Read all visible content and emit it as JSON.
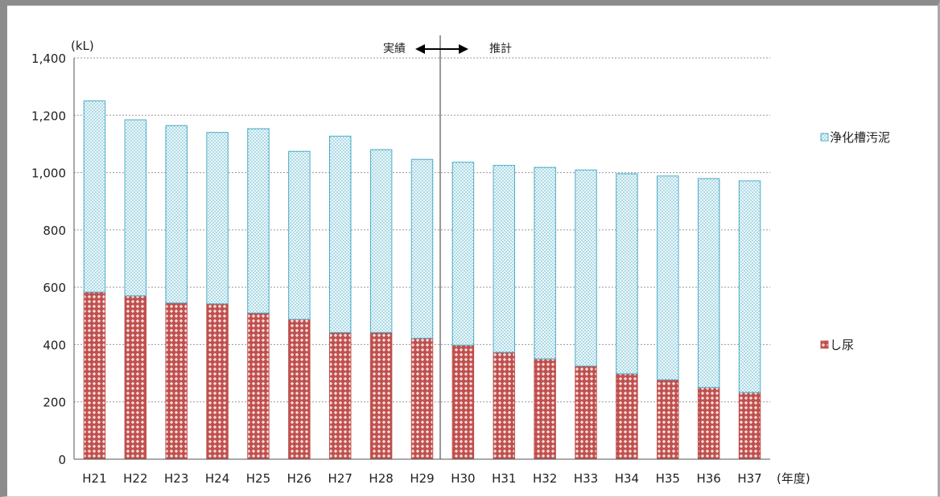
{
  "chart_data": {
    "type": "bar",
    "stacked": true,
    "categories": [
      "H21",
      "H22",
      "H23",
      "H24",
      "H25",
      "H26",
      "H27",
      "H28",
      "H29",
      "H30",
      "H31",
      "H32",
      "H33",
      "H34",
      "H35",
      "H36",
      "H37"
    ],
    "series": [
      {
        "name": "し尿",
        "values": [
          583,
          570,
          545,
          542,
          510,
          488,
          442,
          442,
          422,
          398,
          373,
          350,
          325,
          298,
          277,
          250,
          233
        ],
        "color": "#c0504d",
        "pattern": "diamond"
      },
      {
        "name": "浄化槽汚泥",
        "values": [
          667,
          614,
          619,
          598,
          643,
          586,
          685,
          638,
          624,
          638,
          652,
          668,
          684,
          698,
          711,
          729,
          738
        ],
        "color": "#4bacc6",
        "pattern": "dots"
      }
    ],
    "yunit": "(kL)",
    "xunit": "(年度)",
    "ylim": [
      0,
      1400
    ],
    "yticks": [
      0,
      200,
      400,
      600,
      800,
      1000,
      1200,
      1400
    ],
    "ytick_labels": [
      "0",
      "200",
      "400",
      "600",
      "800",
      "1,000",
      "1,200",
      "1,400"
    ],
    "grid": true,
    "legend_position": "right",
    "annotation": {
      "left": "実績",
      "right": "推計",
      "split_after": "H29"
    }
  }
}
